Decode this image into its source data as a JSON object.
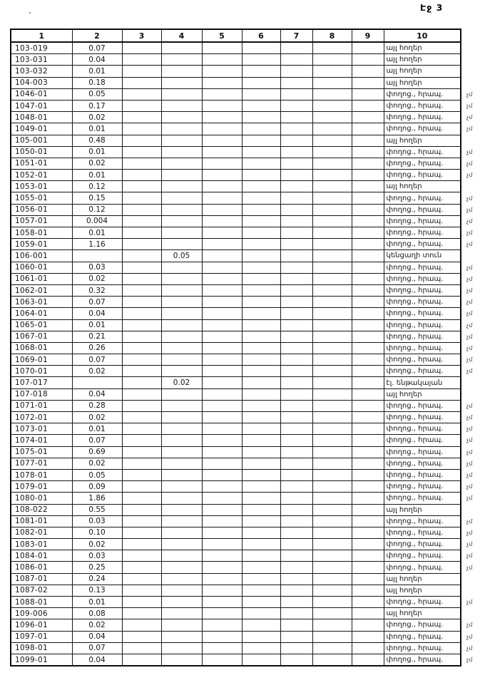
{
  "page": {
    "number_label": "Էջ 3"
  },
  "colors": {
    "ink": "#141414",
    "paper": "#ffffff",
    "note_ink": "#3c3c3c"
  },
  "table": {
    "headers": [
      "1",
      "2",
      "3",
      "4",
      "5",
      "6",
      "7",
      "8",
      "9",
      "10"
    ],
    "rows": [
      {
        "c1": "103-019",
        "c2": "0.07",
        "c4": "",
        "c10": "այլ հողեր",
        "note": ""
      },
      {
        "c1": "103-031",
        "c2": "0.04",
        "c4": "",
        "c10": "այլ հողեր",
        "note": ""
      },
      {
        "c1": "103-032",
        "c2": "0.01",
        "c4": "",
        "c10": "այլ հողեր",
        "note": ""
      },
      {
        "c1": "104-003",
        "c2": "0.18",
        "c4": "",
        "c10": "այլ հողեր",
        "note": ""
      },
      {
        "c1": "1046-01",
        "c2": "0.05",
        "c4": "",
        "c10": "փողոց., հրապ.",
        "note": "չմ"
      },
      {
        "c1": "1047-01",
        "c2": "0.17",
        "c4": "",
        "c10": "փողոց., հրապ.",
        "note": "չմ"
      },
      {
        "c1": "1048-01",
        "c2": "0.02",
        "c4": "",
        "c10": "փողոց., հրապ.",
        "note": "չմ"
      },
      {
        "c1": "1049-01",
        "c2": "0.01",
        "c4": "",
        "c10": "փողոց., հրապ.",
        "note": "չմ"
      },
      {
        "c1": "105-001",
        "c2": "0.48",
        "c4": "",
        "c10": "այլ հողեր",
        "note": ""
      },
      {
        "c1": "1050-01",
        "c2": "0.01",
        "c4": "",
        "c10": "փողոց., հրապ.",
        "note": "չմ"
      },
      {
        "c1": "1051-01",
        "c2": "0.02",
        "c4": "",
        "c10": "փողոց., հրապ.",
        "note": "չմ"
      },
      {
        "c1": "1052-01",
        "c2": "0.01",
        "c4": "",
        "c10": "փողոց., հրապ.",
        "note": "չմ"
      },
      {
        "c1": "1053-01",
        "c2": "0.12",
        "c4": "",
        "c10": "այլ հողեր",
        "note": ""
      },
      {
        "c1": "1055-01",
        "c2": "0.15",
        "c4": "",
        "c10": "փողոց., հրապ.",
        "note": "չմ"
      },
      {
        "c1": "1056-01",
        "c2": "0.12",
        "c4": "",
        "c10": "փողոց., հրապ.",
        "note": "չմ"
      },
      {
        "c1": "1057-01",
        "c2": "0.004",
        "c4": "",
        "c10": "փողոց., հրապ.",
        "note": "չմ"
      },
      {
        "c1": "1058-01",
        "c2": "0.01",
        "c4": "",
        "c10": "փողոց., հրապ.",
        "note": "չմ"
      },
      {
        "c1": "1059-01",
        "c2": "1.16",
        "c4": "",
        "c10": "փողոց., հրապ.",
        "note": "չմ"
      },
      {
        "c1": "106-001",
        "c2": "",
        "c4": "0.05",
        "c10": "կենցաղի տուն",
        "note": ""
      },
      {
        "c1": "1060-01",
        "c2": "0.03",
        "c4": "",
        "c10": "փողոց., հրապ.",
        "note": "չմ"
      },
      {
        "c1": "1061-01",
        "c2": "0.02",
        "c4": "",
        "c10": "փողոց., հրապ.",
        "note": "չմ"
      },
      {
        "c1": "1062-01",
        "c2": "0.32",
        "c4": "",
        "c10": "փողոց., հրապ.",
        "note": "չմ"
      },
      {
        "c1": "1063-01",
        "c2": "0.07",
        "c4": "",
        "c10": "փողոց., հրապ.",
        "note": "չմ"
      },
      {
        "c1": "1064-01",
        "c2": "0.04",
        "c4": "",
        "c10": "փողոց., հրապ.",
        "note": "չմ"
      },
      {
        "c1": "1065-01",
        "c2": "0.01",
        "c4": "",
        "c10": "փողոց., հրապ.",
        "note": "չմ"
      },
      {
        "c1": "1067-01",
        "c2": "0.21",
        "c4": "",
        "c10": "փողոց., հրապ.",
        "note": "չմ"
      },
      {
        "c1": "1068-01",
        "c2": "0.26",
        "c4": "",
        "c10": "փողոց., հրապ.",
        "note": "չմ"
      },
      {
        "c1": "1069-01",
        "c2": "0.07",
        "c4": "",
        "c10": "փողոց., հրապ.",
        "note": "չմ"
      },
      {
        "c1": "1070-01",
        "c2": "0.02",
        "c4": "",
        "c10": "փողոց., հրապ.",
        "note": "չմ"
      },
      {
        "c1": "107-017",
        "c2": "",
        "c4": "0.02",
        "c10": "էլ. ենթակայան",
        "note": ""
      },
      {
        "c1": "107-018",
        "c2": "0.04",
        "c4": "",
        "c10": "այլ հողեր",
        "note": ""
      },
      {
        "c1": "1071-01",
        "c2": "0.28",
        "c4": "",
        "c10": "փողոց., հրապ.",
        "note": "չմ"
      },
      {
        "c1": "1072-01",
        "c2": "0.02",
        "c4": "",
        "c10": "փողոց., հրապ.",
        "note": "չմ"
      },
      {
        "c1": "1073-01",
        "c2": "0.01",
        "c4": "",
        "c10": "փողոց., հրապ.",
        "note": "չմ"
      },
      {
        "c1": "1074-01",
        "c2": "0.07",
        "c4": "",
        "c10": "փողոց., հրապ.",
        "note": "չմ"
      },
      {
        "c1": "1075-01",
        "c2": "0.69",
        "c4": "",
        "c10": "փողոց., հրապ.",
        "note": "չմ"
      },
      {
        "c1": "1077-01",
        "c2": "0.02",
        "c4": "",
        "c10": "փողոց., հրապ.",
        "note": "չմ"
      },
      {
        "c1": "1078-01",
        "c2": "0.05",
        "c4": "",
        "c10": "փողոց., հրապ.",
        "note": "չմ"
      },
      {
        "c1": "1079-01",
        "c2": "0.09",
        "c4": "",
        "c10": "փողոց., հրապ.",
        "note": "չմ"
      },
      {
        "c1": "1080-01",
        "c2": "1.86",
        "c4": "",
        "c10": "փողոց., հրապ.",
        "note": "չմ"
      },
      {
        "c1": "108-022",
        "c2": "0.55",
        "c4": "",
        "c10": "այլ հողեր",
        "note": ""
      },
      {
        "c1": "1081-01",
        "c2": "0.03",
        "c4": "",
        "c10": "փողոց., հրապ.",
        "note": "չմ"
      },
      {
        "c1": "1082-01",
        "c2": "0.10",
        "c4": "",
        "c10": "փողոց., հրապ.",
        "note": "չմ"
      },
      {
        "c1": "1083-01",
        "c2": "0.02",
        "c4": "",
        "c10": "փողոց., հրապ.",
        "note": "չմ"
      },
      {
        "c1": "1084-01",
        "c2": "0.03",
        "c4": "",
        "c10": "փողոց., հրապ.",
        "note": "չմ"
      },
      {
        "c1": "1086-01",
        "c2": "0.25",
        "c4": "",
        "c10": "փողոց., հրապ.",
        "note": "չմ"
      },
      {
        "c1": "1087-01",
        "c2": "0.24",
        "c4": "",
        "c10": "այլ հողեր",
        "note": ""
      },
      {
        "c1": "1087-02",
        "c2": "0.13",
        "c4": "",
        "c10": "այլ հողեր",
        "note": ""
      },
      {
        "c1": "1088-01",
        "c2": "0.01",
        "c4": "",
        "c10": "փողոց., հրապ.",
        "note": "չմ"
      },
      {
        "c1": "109-006",
        "c2": "0.08",
        "c4": "",
        "c10": "այլ հողեր",
        "note": ""
      },
      {
        "c1": "1096-01",
        "c2": "0.02",
        "c4": "",
        "c10": "փողոց., հրապ.",
        "note": "չմ"
      },
      {
        "c1": "1097-01",
        "c2": "0.04",
        "c4": "",
        "c10": "փողոց., հրապ.",
        "note": "չմ"
      },
      {
        "c1": "1098-01",
        "c2": "0.07",
        "c4": "",
        "c10": "փողոց., հրապ.",
        "note": "չմ"
      },
      {
        "c1": "1099-01",
        "c2": "0.04",
        "c4": "",
        "c10": "փողոց., հրապ.",
        "note": "չմ"
      }
    ]
  }
}
